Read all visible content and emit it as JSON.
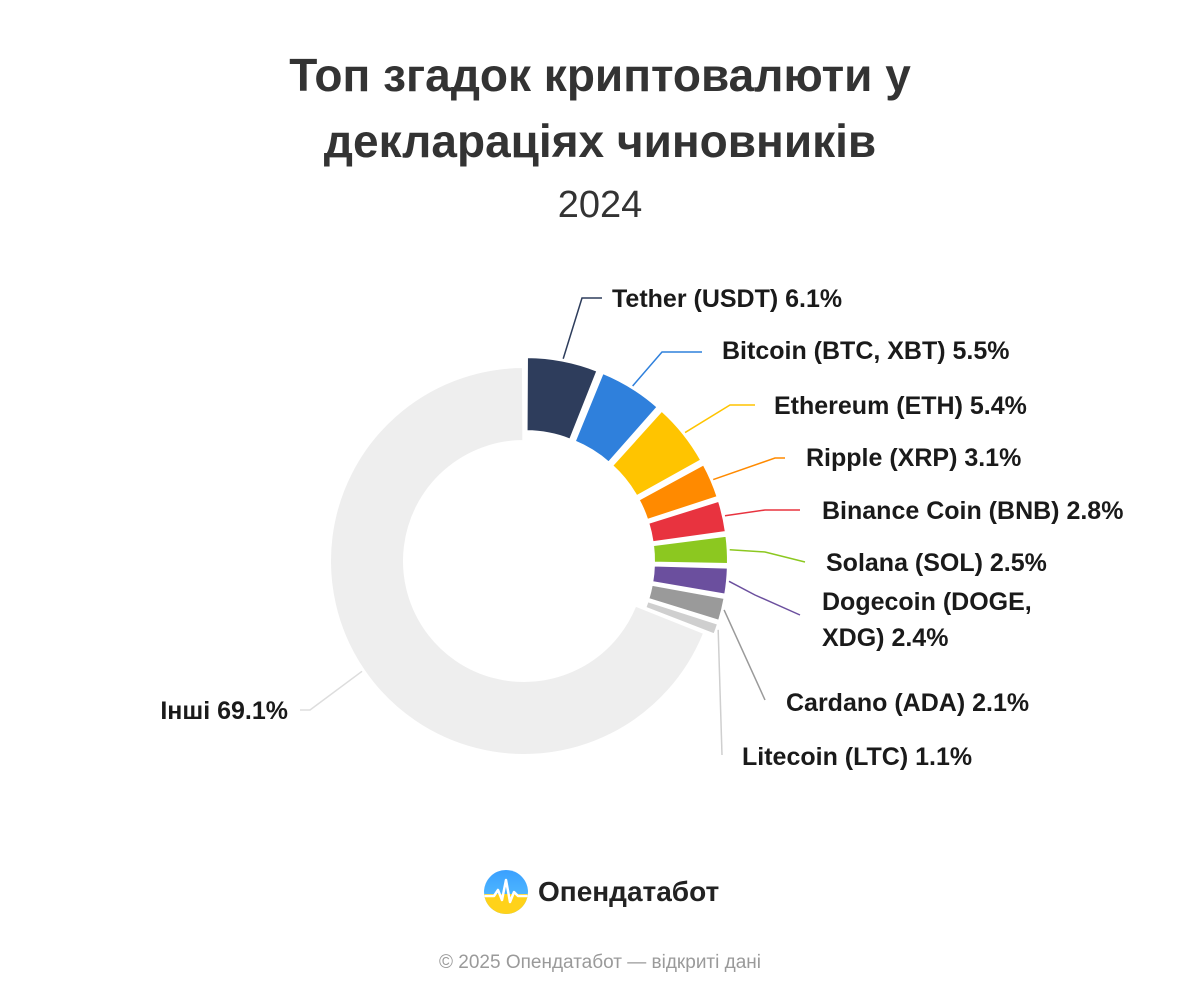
{
  "chart_data": {
    "type": "pie",
    "title": [
      "Топ згадок криптовалюти у",
      "деклараціях чиновників"
    ],
    "subtitle": "2024",
    "series": [
      {
        "name": "Tether (USDT)",
        "value": 6.1,
        "label_lines": [
          "Tether (USDT) 6.1%"
        ],
        "color": "#2e3d5c"
      },
      {
        "name": "Bitcoin (BTC, XBT)",
        "value": 5.5,
        "label_lines": [
          "Bitcoin (BTC, XBT) 5.5%"
        ],
        "color": "#2f80dc"
      },
      {
        "name": "Ethereum (ETH)",
        "value": 5.4,
        "label_lines": [
          "Ethereum (ETH) 5.4%"
        ],
        "color": "#ffc400"
      },
      {
        "name": "Ripple (XRP)",
        "value": 3.1,
        "label_lines": [
          "Ripple (XRP) 3.1%"
        ],
        "color": "#ff8a00"
      },
      {
        "name": "Binance Coin (BNB)",
        "value": 2.8,
        "label_lines": [
          "Binance Coin (BNB) 2.8%"
        ],
        "color": "#e8333f"
      },
      {
        "name": "Solana (SOL)",
        "value": 2.5,
        "label_lines": [
          "Solana (SOL) 2.5%"
        ],
        "color": "#8cc820"
      },
      {
        "name": "Dogecoin (DOGE, XDG)",
        "value": 2.4,
        "label_lines": [
          "Dogecoin (DOGE,",
          "XDG) 2.4%"
        ],
        "color": "#6b4f9e"
      },
      {
        "name": "Cardano (ADA)",
        "value": 2.1,
        "label_lines": [
          "Cardano (ADA) 2.1%"
        ],
        "color": "#9a9a9a"
      },
      {
        "name": "Litecoin (LTC)",
        "value": 1.1,
        "label_lines": [
          "Litecoin (LTC) 1.1%"
        ],
        "color": "#cfcfcf"
      },
      {
        "name": "Інші",
        "value": 69.1,
        "label_lines": [
          "Інші 69.1%"
        ],
        "color": "#eeeeee"
      }
    ]
  },
  "brand": {
    "name": "Опендатабот",
    "footer": "© 2025 Опендатабот — відкриті дані"
  }
}
